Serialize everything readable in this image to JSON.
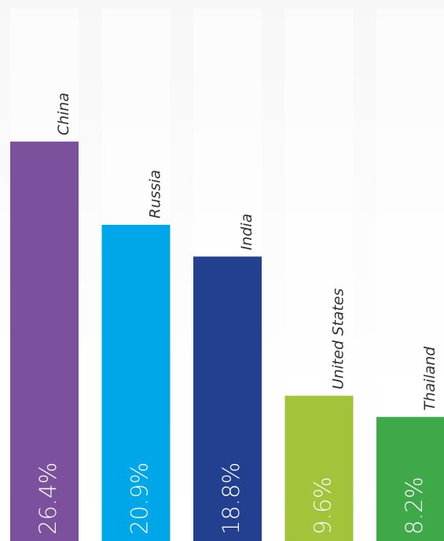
{
  "chart_data": {
    "type": "bar",
    "orientation": "vertical",
    "categories": [
      "China",
      "Russia",
      "India",
      "United States",
      "Thailand"
    ],
    "values": [
      26.4,
      20.9,
      18.8,
      9.6,
      8.2
    ],
    "value_labels": [
      "26.4%",
      "20.9%",
      "18.8%",
      "9.6%",
      "8.2%"
    ],
    "colors": [
      "#7b519d",
      "#00a7e8",
      "#233f8f",
      "#a2c43a",
      "#3fa94a"
    ],
    "title": "",
    "xlabel": "",
    "ylabel": "",
    "ylim": [
      0,
      35
    ],
    "grid": false,
    "legend": "none"
  }
}
